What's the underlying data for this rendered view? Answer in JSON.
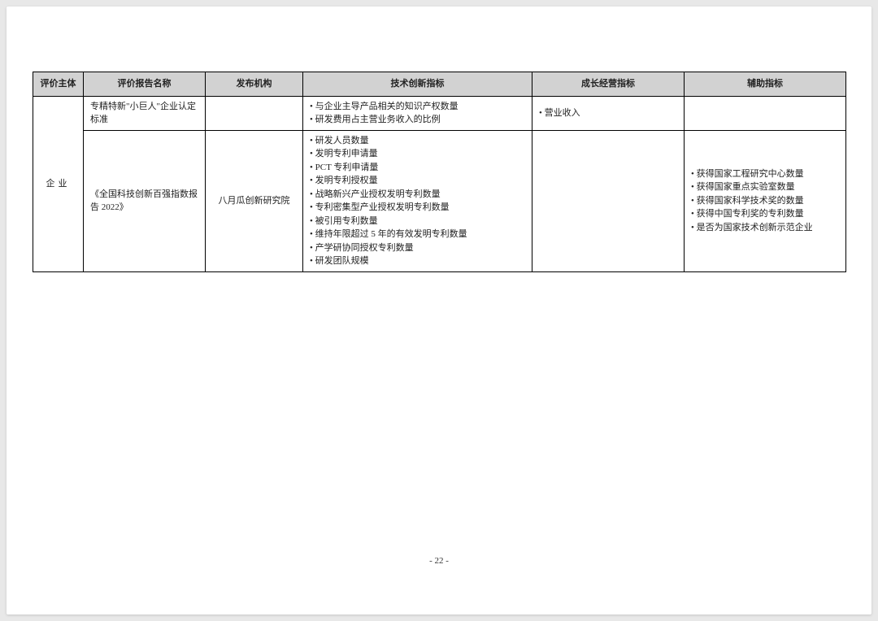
{
  "headers": {
    "col1": "评价主体",
    "col2": "评价报告名称",
    "col3": "发布机构",
    "col4": "技术创新指标",
    "col5": "成长经营指标",
    "col6": "辅助指标"
  },
  "rowspan_subject": "企业",
  "row1": {
    "report_name": "专精特新\"小巨人\"企业认定标准",
    "publisher": "",
    "tech_items": [
      "与企业主导产品相关的知识产权数量",
      "研发费用占主营业务收入的比例"
    ],
    "growth_items": [
      "营业收入"
    ],
    "aux_items": []
  },
  "row2": {
    "report_name": "《全国科技创新百强指数报告 2022》",
    "publisher": "八月瓜创新研究院",
    "tech_items": [
      "研发人员数量",
      "发明专利申请量",
      "PCT 专利申请量",
      "发明专利授权量",
      "战略新兴产业授权发明专利数量",
      "专利密集型产业授权发明专利数量",
      "被引用专利数量",
      "维持年限超过 5 年的有效发明专利数量",
      "产学研协同授权专利数量",
      "研发团队规模"
    ],
    "growth_items": [],
    "aux_items": [
      "获得国家工程研究中心数量",
      "获得国家重点实验室数量",
      "获得国家科学技术奖的数量",
      "获得中国专利奖的专利数量",
      "是否为国家技术创新示范企业"
    ]
  },
  "page_number": "- 22 -",
  "col_widths": {
    "col1": "62px",
    "col2": "150px",
    "col3": "120px",
    "col4": "282px",
    "col5": "187px",
    "col6": "199px"
  }
}
